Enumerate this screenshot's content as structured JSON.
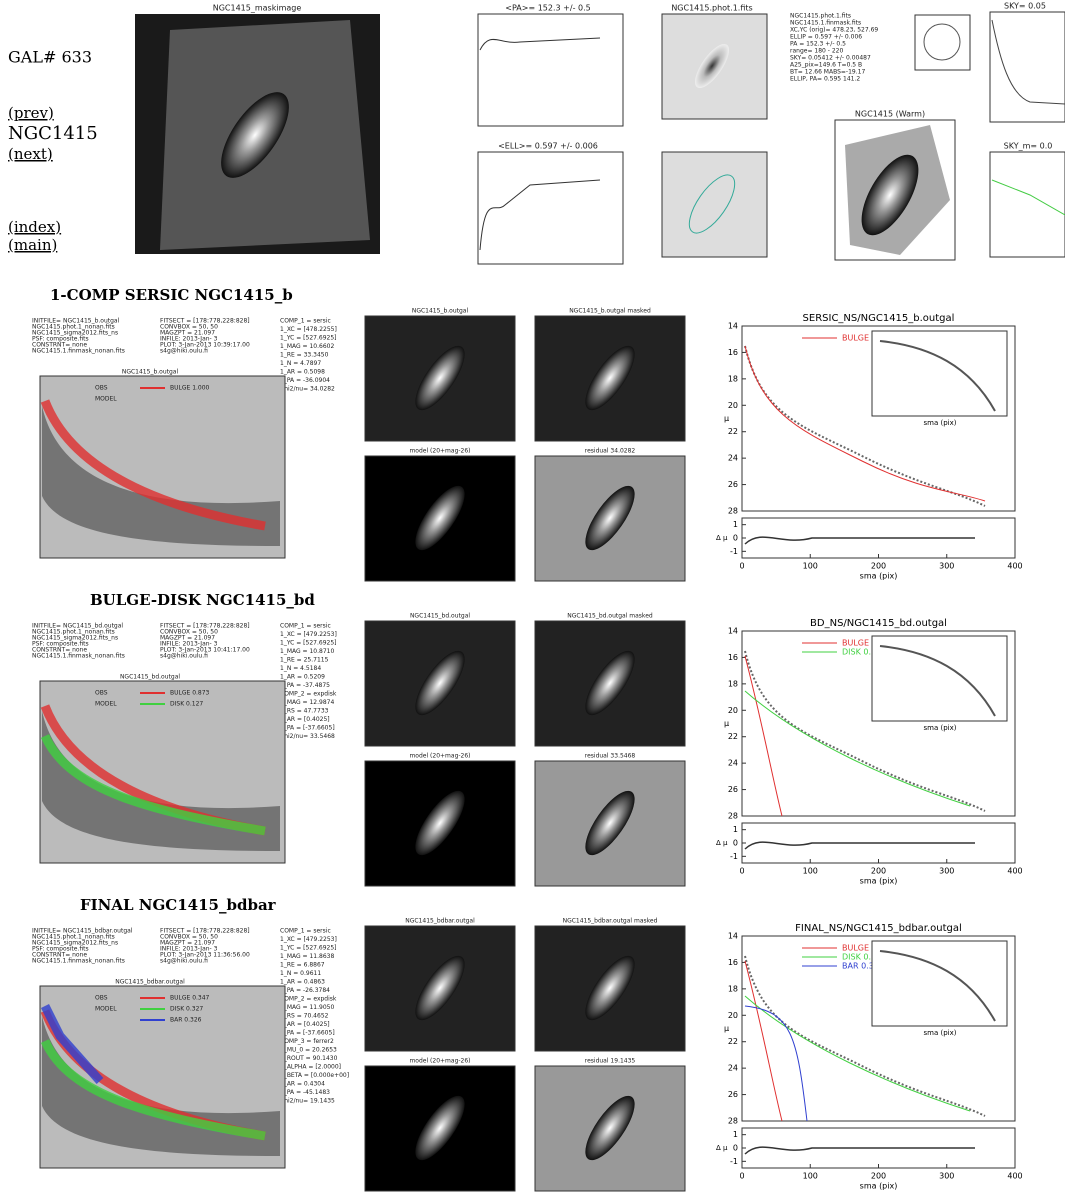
{
  "nav": {
    "gal": "GAL# 633",
    "prev": "(prev)",
    "name": "NGC1415",
    "next": "(next)",
    "index": "(index)",
    "main": "(main)"
  },
  "top": {
    "mask": "NGC1415_maskimage",
    "pa": "<PA>= 152.3 +/-  0.5",
    "ell": "<ELL>= 0.597 +/-  0.006",
    "fits": "NGC1415.phot.1.fits",
    "warm": "NGC1415 (Warm)",
    "sky": "SKY= 0.05",
    "sky_m": "SKY_m= 0.0",
    "info": [
      "NGC1415.phot.1.fits",
      "NGC1415.1.finmask.fits",
      "XC,YC (orig)=  478.23, 527.69",
      "ELLIP = 0.597 +/- 0.006",
      "PA   = 152.3 +/-  0.5",
      "range=  180 - 220",
      "SKY= 0.05412 +/- 0.00487",
      "A25_pix=149.6   T=0.5  B",
      "BT=  12.66   MABS=-19.17",
      "ELLIP, PA= 0.595  141.2"
    ]
  },
  "axes": {
    "yticks": [
      14,
      16,
      18,
      20,
      22,
      24,
      26,
      28
    ],
    "ylim": [
      14,
      28
    ],
    "xticks": [
      0,
      100,
      200,
      300,
      400
    ],
    "xlim": [
      0,
      400
    ],
    "rticks": [
      -1,
      0,
      1
    ],
    "rlim": [
      -1.5,
      1.5
    ],
    "ylabel": "μ",
    "rlabel": "Δ μ",
    "xlabel": "sma (pix)"
  },
  "sections": [
    {
      "heading": "1-COMP SERSIC NGC1415_b",
      "profile_title": "NGC1415_b.outgal",
      "legend": [
        "OBS",
        "MODEL"
      ],
      "img": [
        "NGC1415_b.outgal",
        "model (20+mag-26)",
        "NGC1415_b.outgal masked",
        "residual      34.0282"
      ],
      "plot_title": "SERSIC_NS/NGC1415_b.outgal",
      "components": [
        {
          "label": "BULGE  1.000",
          "color": "#e03030"
        }
      ],
      "info": [
        "INITFILE= NGC1415_b.outgal",
        "NGC1415.phot.1_nonan.fits",
        "NGC1415_sigma2012.fits_ns",
        "PSF: composite.fits",
        "CONSTRNT= none",
        "NGC1415.1.finmask_nonan.fits"
      ],
      "fit": [
        "FITSECT = [178:778,228:828]",
        "CONVBOX = 50, 50",
        "MAGZPT =        21.097",
        "INFILE: 2013-Jan- 3",
        "PLOT:  3-Jan-2013 10:39:17.00",
        "s4g@hiki.oulu.fi"
      ],
      "comp": [
        "COMP_1 = sersic",
        "1_XC   = [478.2255]",
        "1_YC   = [527.6925]",
        "1_MAG  = 10.6602",
        "1_RE   = 33.3450",
        "1_N    = 4.7897",
        "1_AR   = 0.5098",
        "1_PA   = -36.0904",
        "Chi2/nu=     34.0282"
      ]
    },
    {
      "heading": "BULGE-DISK NGC1415_bd",
      "profile_title": "NGC1415_bd.outgal",
      "legend": [
        "OBS",
        "MODEL"
      ],
      "img": [
        "NGC1415_bd.outgal",
        "model (20+mag-26)",
        "NGC1415_bd.outgal masked",
        "residual      33.5468"
      ],
      "plot_title": "BD_NS/NGC1415_bd.outgal",
      "components": [
        {
          "label": "BULGE  0.873",
          "color": "#e03030"
        },
        {
          "label": "DISK  0.127",
          "color": "#40d040"
        }
      ],
      "info": [
        "INITFILE= NGC1415_bd.outgal",
        "NGC1415.phot.1_nonan.fits",
        "NGC1415_sigma2012.fits_ns",
        "PSF: composite.fits",
        "CONSTRNT= none",
        "NGC1415.1.finmask_nonan.fits"
      ],
      "fit": [
        "FITSECT = [178:778,228:828]",
        "CONVBOX = 50, 50",
        "MAGZPT =        21.097",
        "INFILE: 2013-Jan- 3",
        "PLOT:  3-Jan-2013 10:41:17.00",
        "s4g@hiki.oulu.fi"
      ],
      "comp": [
        "COMP_1 = sersic",
        "1_XC   = [479.2253]",
        "1_YC   = [527.6925]",
        "1_MAG  = 10.8710",
        "1_RE   = 25.7115",
        "1_N    = 4.5184",
        "1_AR   = 0.5209",
        "1_PA   = -37.4875",
        "COMP_2 = expdisk",
        "2_MAG  = 12.9874",
        "2_RS   = 47.7733",
        "2_AR   = [0.4025]",
        "2_PA   = [-37.6605]",
        "Chi2/nu=     33.5468"
      ]
    },
    {
      "heading": "FINAL NGC1415_bdbar",
      "profile_title": "NGC1415_bdbar.outgal",
      "legend": [
        "OBS",
        "MODEL"
      ],
      "img": [
        "NGC1415_bdbar.outgal",
        "model (20+mag-26)",
        "NGC1415_bdbar.outgal masked",
        "residual      19.1435"
      ],
      "plot_title": "FINAL_NS/NGC1415_bdbar.outgal",
      "components": [
        {
          "label": "BULGE  0.347",
          "color": "#e03030"
        },
        {
          "label": "DISK  0.327",
          "color": "#40d040"
        },
        {
          "label": "BAR  0.326",
          "color": "#3040d0"
        }
      ],
      "info": [
        "INITFILE= NGC1415_bdbar.outgal",
        "NGC1415.phot.1_nonan.fits",
        "NGC1415_sigma2012.fits_ns",
        "PSF: composite.fits",
        "CONSTRNT= none",
        "NGC1415.1.finmask_nonan.fits"
      ],
      "fit": [
        "FITSECT = [178:778,228:828]",
        "CONVBOX = 50, 50",
        "MAGZPT =        21.097",
        "INFILE: 2013-Jan- 3",
        "PLOT:  3-Jan-2013 11:36:56.00",
        "s4g@hiki.oulu.fi"
      ],
      "comp": [
        "COMP_1 = sersic",
        "1_XC   = [479.2253]",
        "1_YC   = [527.6925]",
        "1_MAG  = 11.8638",
        "1_RE   = 6.8867",
        "1_N    = 0.9611",
        "1_AR   = 0.4863",
        "1_PA   = -26.3784",
        "COMP_2 = expdisk",
        "2_MAG  = 11.9050",
        "2_RS   = 70.4652",
        "2_AR   = [0.4025]",
        "2_PA   = [-37.6605]",
        "COMP_3 = ferrer2",
        "3_MU_0 = 20.2653",
        "3_ROUT = 90.1430",
        "3_ALPHA = [2.0000]",
        "3_BETA = [0.000e+00]",
        "3_AR   = 0.4304",
        "3_PA   = -45.1483",
        "Chi2/nu=     19.1435"
      ]
    }
  ]
}
